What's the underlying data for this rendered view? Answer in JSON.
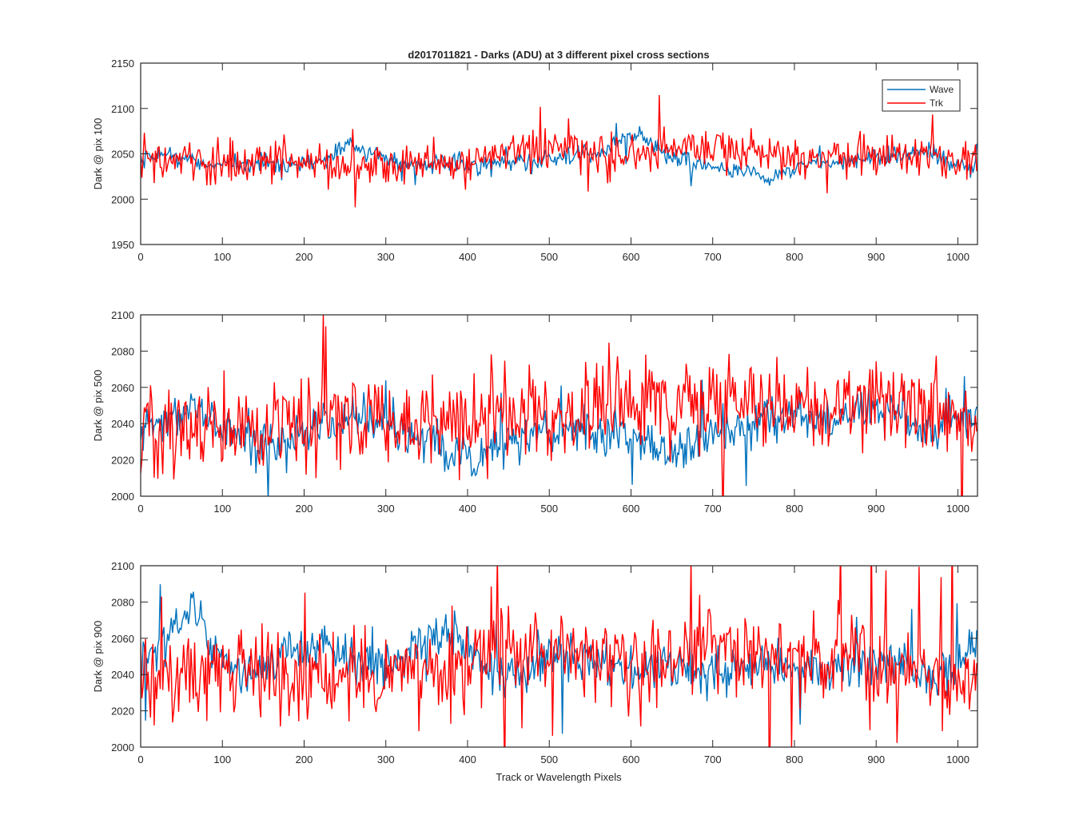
{
  "figure": {
    "title": "d2017011821 - Darks (ADU) at 3 different pixel cross sections",
    "shared_xlabel": "Track or Wavelength Pixels"
  },
  "colors": {
    "wave": "#0072BD",
    "trk": "#FF0000",
    "axis": "#262626",
    "background": "#FFFFFF"
  },
  "chart_data": [
    {
      "type": "line",
      "title": "d2017011821 - Darks (ADU) at 3 different pixel cross sections",
      "xlabel": "",
      "ylabel": "Dark @ pix 100",
      "xlim": [
        0,
        1024
      ],
      "ylim": [
        1950,
        2150
      ],
      "xticks": [
        0,
        100,
        200,
        300,
        400,
        500,
        600,
        700,
        800,
        900,
        1000
      ],
      "yticks": [
        1950,
        2000,
        2050,
        2100,
        2150
      ],
      "grid": false,
      "legend": {
        "placement": "top-right",
        "entries": [
          "Wave",
          "Trk"
        ]
      },
      "x": [
        0,
        32,
        64,
        96,
        128,
        160,
        192,
        224,
        256,
        288,
        320,
        352,
        384,
        416,
        448,
        480,
        512,
        544,
        576,
        608,
        640,
        672,
        704,
        736,
        768,
        800,
        832,
        864,
        896,
        928,
        960,
        992,
        1024
      ],
      "series": [
        {
          "name": "Wave",
          "noise_amplitude": 5,
          "values": [
            2040,
            2052,
            2040,
            2039,
            2038,
            2040,
            2042,
            2040,
            2063,
            2048,
            2040,
            2038,
            2040,
            2040,
            2042,
            2040,
            2045,
            2047,
            2060,
            2070,
            2050,
            2040,
            2035,
            2030,
            2022,
            2035,
            2040,
            2040,
            2045,
            2050,
            2055,
            2040,
            2035
          ]
        },
        {
          "name": "Trk",
          "noise_amplitude": 11,
          "values": [
            2045,
            2040,
            2040,
            2040,
            2040,
            2040,
            2042,
            2038,
            2035,
            2040,
            2038,
            2040,
            2040,
            2045,
            2050,
            2055,
            2055,
            2050,
            2048,
            2050,
            2055,
            2060,
            2058,
            2055,
            2050,
            2045,
            2045,
            2045,
            2048,
            2050,
            2045,
            2040,
            2045
          ]
        }
      ]
    },
    {
      "type": "line",
      "title": "",
      "xlabel": "",
      "ylabel": "Dark @ pix 500",
      "xlim": [
        0,
        1024
      ],
      "ylim": [
        2000,
        2100
      ],
      "xticks": [
        0,
        100,
        200,
        300,
        400,
        500,
        600,
        700,
        800,
        900,
        1000
      ],
      "yticks": [
        2000,
        2020,
        2040,
        2060,
        2080,
        2100
      ],
      "grid": false,
      "x": [
        0,
        32,
        64,
        96,
        128,
        160,
        192,
        224,
        256,
        288,
        320,
        352,
        384,
        416,
        448,
        480,
        512,
        544,
        576,
        608,
        640,
        672,
        704,
        736,
        768,
        800,
        832,
        864,
        896,
        928,
        960,
        992,
        1024
      ],
      "series": [
        {
          "name": "Wave",
          "noise_amplitude": 6,
          "values": [
            2035,
            2045,
            2050,
            2040,
            2030,
            2030,
            2035,
            2040,
            2045,
            2040,
            2035,
            2032,
            2025,
            2022,
            2030,
            2035,
            2035,
            2040,
            2035,
            2030,
            2025,
            2030,
            2035,
            2040,
            2045,
            2045,
            2040,
            2045,
            2050,
            2045,
            2035,
            2040,
            2045
          ]
        },
        {
          "name": "Trk",
          "noise_amplitude": 12,
          "values": [
            2038,
            2035,
            2040,
            2040,
            2042,
            2040,
            2040,
            2040,
            2042,
            2038,
            2040,
            2042,
            2045,
            2045,
            2048,
            2050,
            2045,
            2048,
            2052,
            2050,
            2048,
            2050,
            2052,
            2055,
            2050,
            2052,
            2050,
            2050,
            2052,
            2050,
            2048,
            2045,
            2040
          ]
        }
      ]
    },
    {
      "type": "line",
      "title": "",
      "xlabel": "Track or Wavelength Pixels",
      "ylabel": "Dark @ pix 900",
      "xlim": [
        0,
        1024
      ],
      "ylim": [
        2000,
        2100
      ],
      "xticks": [
        0,
        100,
        200,
        300,
        400,
        500,
        600,
        700,
        800,
        900,
        1000
      ],
      "yticks": [
        2000,
        2020,
        2040,
        2060,
        2080,
        2100
      ],
      "grid": false,
      "x": [
        0,
        32,
        64,
        96,
        128,
        160,
        192,
        224,
        256,
        288,
        320,
        352,
        384,
        416,
        448,
        480,
        512,
        544,
        576,
        608,
        640,
        672,
        704,
        736,
        768,
        800,
        832,
        864,
        896,
        928,
        960,
        992,
        1024
      ],
      "series": [
        {
          "name": "Wave",
          "noise_amplitude": 6,
          "values": [
            2045,
            2060,
            2075,
            2050,
            2040,
            2045,
            2055,
            2055,
            2048,
            2045,
            2050,
            2060,
            2068,
            2045,
            2040,
            2045,
            2050,
            2050,
            2045,
            2040,
            2045,
            2045,
            2040,
            2045,
            2045,
            2045,
            2045,
            2045,
            2045,
            2045,
            2040,
            2040,
            2055
          ]
        },
        {
          "name": "Trk",
          "noise_amplitude": 12,
          "values": [
            2040,
            2035,
            2040,
            2045,
            2045,
            2040,
            2040,
            2040,
            2040,
            2040,
            2040,
            2040,
            2045,
            2048,
            2050,
            2050,
            2052,
            2050,
            2050,
            2048,
            2050,
            2052,
            2055,
            2050,
            2052,
            2050,
            2050,
            2050,
            2048,
            2045,
            2045,
            2042,
            2040
          ]
        }
      ]
    }
  ]
}
